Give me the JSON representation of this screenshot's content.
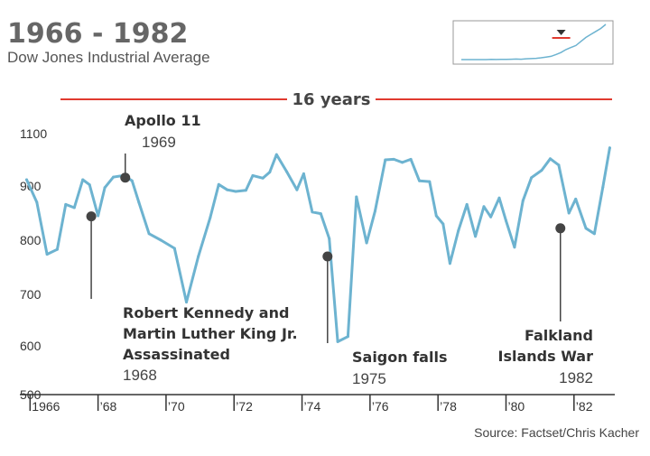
{
  "title": "1966 - 1982",
  "subtitle": "Dow Jones Industrial Average",
  "source": "Source: Factset/Chris Kacher",
  "period_label": "16 years",
  "colors": {
    "line": "#6db3d0",
    "accent": "#e03a2f",
    "axis": "#333333",
    "marker": "#444444",
    "title": "#666666"
  },
  "chart_data": {
    "type": "line",
    "title": "1966 - 1982",
    "subtitle": "Dow Jones Industrial Average",
    "ylabel": "",
    "xlabel": "",
    "ylim": [
      500,
      1150
    ],
    "xlim": [
      1965.7,
      1983.2
    ],
    "yticks": [
      500,
      600,
      700,
      800,
      900,
      1100
    ],
    "xticks": [
      {
        "label": "1966",
        "x": 1966
      },
      {
        "label": "'68",
        "x": 1968
      },
      {
        "label": "'70",
        "x": 1970
      },
      {
        "label": "'72",
        "x": 1972
      },
      {
        "label": "'74",
        "x": 1974
      },
      {
        "label": "'76",
        "x": 1976
      },
      {
        "label": "'78",
        "x": 1978
      },
      {
        "label": "'80",
        "x": 1980
      },
      {
        "label": "'82",
        "x": 1982
      }
    ],
    "series": [
      {
        "x": [
          1965.9,
          1966.2,
          1966.5,
          1966.8,
          1967.05,
          1967.3,
          1967.55,
          1967.75,
          1968.0,
          1968.2,
          1968.45,
          1968.75,
          1969.0,
          1969.2,
          1969.5,
          1969.85,
          1970.25,
          1970.6,
          1970.95,
          1971.3,
          1971.55,
          1971.8,
          1972.05,
          1972.35,
          1972.55,
          1972.85,
          1973.05,
          1973.25,
          1973.55,
          1973.85,
          1974.05,
          1974.3,
          1974.55,
          1974.8,
          1975.05,
          1975.35,
          1975.6,
          1975.9,
          1976.15,
          1976.45,
          1976.7,
          1976.95,
          1977.2,
          1977.45,
          1977.75,
          1977.95,
          1978.15,
          1978.35,
          1978.6,
          1978.85,
          1979.1,
          1979.35,
          1979.55,
          1979.8,
          1980.0,
          1980.25,
          1980.5,
          1980.75,
          1981.05,
          1981.3,
          1981.55,
          1981.85,
          1982.05,
          1982.35,
          1982.6,
          1982.85,
          1983.05
        ],
        "y": [
          924,
          870,
          774,
          783,
          866,
          860,
          924,
          905,
          845,
          897,
          934,
          940,
          920,
          870,
          812,
          800,
          785,
          685,
          770,
          842,
          906,
          893,
          890,
          892,
          940,
          930,
          953,
          1020,
          955,
          893,
          947,
          852,
          849,
          803,
          608,
          618,
          880,
          795,
          854,
          1000,
          1002,
          990,
          1002,
          920,
          917,
          845,
          830,
          757,
          818,
          866,
          807,
          862,
          843,
          878,
          836,
          787,
          873,
          932,
          960,
          1004,
          980,
          850,
          876,
          822,
          812,
          898,
          1046
        ]
      }
    ],
    "annotations": [
      {
        "title": "Apollo 11",
        "year": "1969",
        "x": 1968.8,
        "y": 932
      },
      {
        "title_lines": [
          "Robert Kennedy and",
          "Martin Luther King Jr.",
          "Assassinated"
        ],
        "year": "1968",
        "x": 1967.8,
        "y": 844
      },
      {
        "title": "Saigon falls",
        "year": "1975",
        "x": 1974.75,
        "y": 770
      },
      {
        "title_lines": [
          "Falkland",
          "Islands War"
        ],
        "year": "1982",
        "x": 1981.6,
        "y": 822
      }
    ],
    "inset": {
      "y": [
        5,
        5,
        5,
        5,
        5,
        5,
        5.2,
        5.1,
        5.3,
        5.2,
        5.4,
        5.5,
        5.4,
        5.8,
        6.0,
        6.3,
        6.8,
        7.5,
        8.2,
        10,
        12,
        15,
        17,
        19,
        23,
        27,
        30,
        33,
        36,
        40
      ],
      "marker_position": 0.36
    }
  }
}
